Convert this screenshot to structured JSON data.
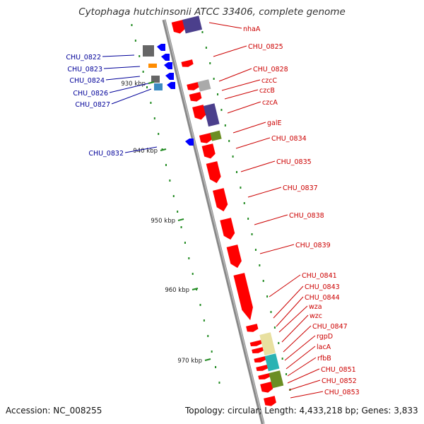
{
  "title": "Cytophaga hutchinsonii ATCC 33406, complete genome",
  "footer": {
    "accession": "Accession: NC_008255",
    "topology": "Topology: circular; Length: 4,433,218 bp; Genes: 3,833"
  },
  "colors": {
    "forward_gene": "#ff0000",
    "reverse_gene": "#0000ff",
    "forward_label": "#cc0000",
    "reverse_label": "#000099",
    "backbone": "#888888",
    "tick": "#228b22"
  },
  "scale": {
    "unit": "kbp",
    "ticks": [
      "930 kbp",
      "940 kbp",
      "950 kbp",
      "960 kbp",
      "970 kbp"
    ]
  },
  "forward_labels": [
    "nhaA",
    "CHU_0825",
    "CHU_0828",
    "czcC",
    "czcB",
    "czcA",
    "galE",
    "CHU_0834",
    "CHU_0835",
    "CHU_0837",
    "CHU_0838",
    "CHU_0839",
    "CHU_0841",
    "CHU_0843",
    "CHU_0844",
    "wza",
    "wzc",
    "CHU_0847",
    "rgpD",
    "lacA",
    "rfbB",
    "CHU_0851",
    "CHU_0852",
    "CHU_0853"
  ],
  "reverse_labels": [
    "CHU_0822",
    "CHU_0823",
    "CHU_0824",
    "CHU_0826",
    "CHU_0827",
    "CHU_0832"
  ]
}
